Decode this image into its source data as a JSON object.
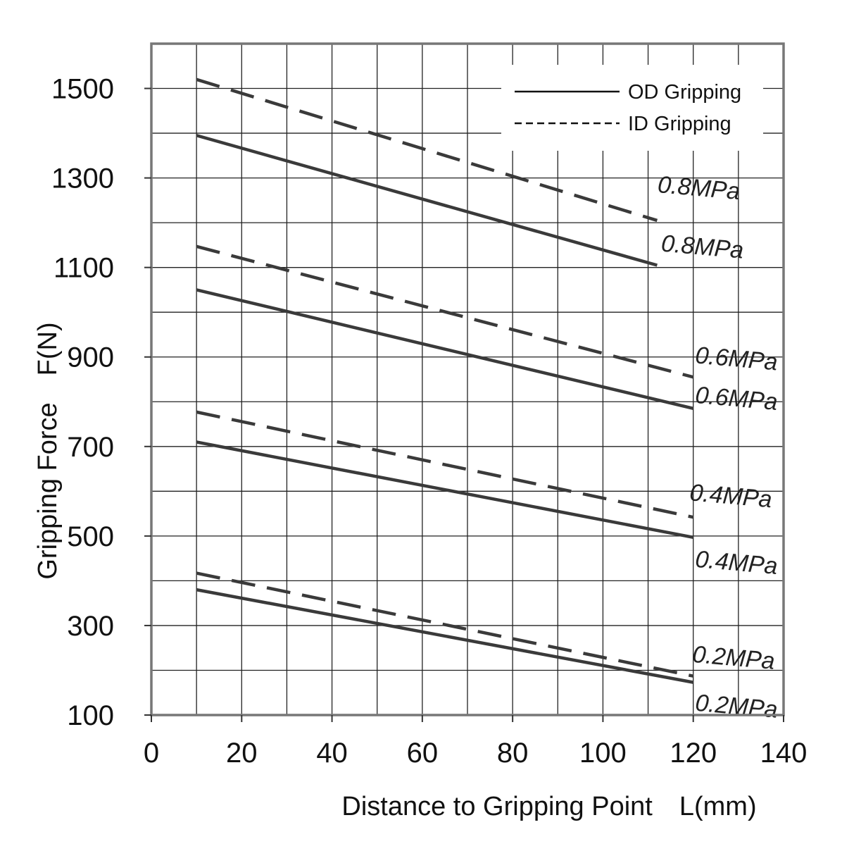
{
  "chart_data": {
    "type": "line",
    "title": "",
    "xlabel": "Distance to Gripping Point　L(mm)",
    "ylabel": "Gripping Force　F(N)",
    "xlim": [
      0,
      140
    ],
    "ylim": [
      100,
      1600
    ],
    "xticks": [
      0,
      20,
      40,
      60,
      80,
      100,
      120,
      140
    ],
    "yticks": [
      100,
      300,
      500,
      700,
      900,
      1100,
      1300,
      1500
    ],
    "grid": true,
    "legend": {
      "position": "top-right",
      "entries": [
        {
          "label": "OD Gripping",
          "style": "solid"
        },
        {
          "label": "ID Gripping",
          "style": "dashed"
        }
      ]
    },
    "series": [
      {
        "group": "OD Gripping",
        "label": "0.8MPa",
        "style": "solid",
        "x": [
          10,
          112
        ],
        "y": [
          1395,
          1105
        ]
      },
      {
        "group": "ID Gripping",
        "label": "0.8MPa",
        "style": "dashed",
        "x": [
          10,
          112
        ],
        "y": [
          1520,
          1205
        ]
      },
      {
        "group": "OD Gripping",
        "label": "0.6MPa",
        "style": "solid",
        "x": [
          10,
          120
        ],
        "y": [
          1050,
          785
        ]
      },
      {
        "group": "ID Gripping",
        "label": "0.6MPa",
        "style": "dashed",
        "x": [
          10,
          120
        ],
        "y": [
          1147,
          855
        ]
      },
      {
        "group": "OD Gripping",
        "label": "0.4MPa",
        "style": "solid",
        "x": [
          10,
          120
        ],
        "y": [
          710,
          497
        ]
      },
      {
        "group": "ID Gripping",
        "label": "0.4MPa",
        "style": "dashed",
        "x": [
          10,
          120
        ],
        "y": [
          777,
          542
        ]
      },
      {
        "group": "OD Gripping",
        "label": "0.2MPa",
        "style": "solid",
        "x": [
          10,
          120
        ],
        "y": [
          380,
          173
        ]
      },
      {
        "group": "ID Gripping",
        "label": "0.2MPa",
        "style": "dashed",
        "x": [
          10,
          120
        ],
        "y": [
          417,
          187
        ]
      }
    ]
  }
}
